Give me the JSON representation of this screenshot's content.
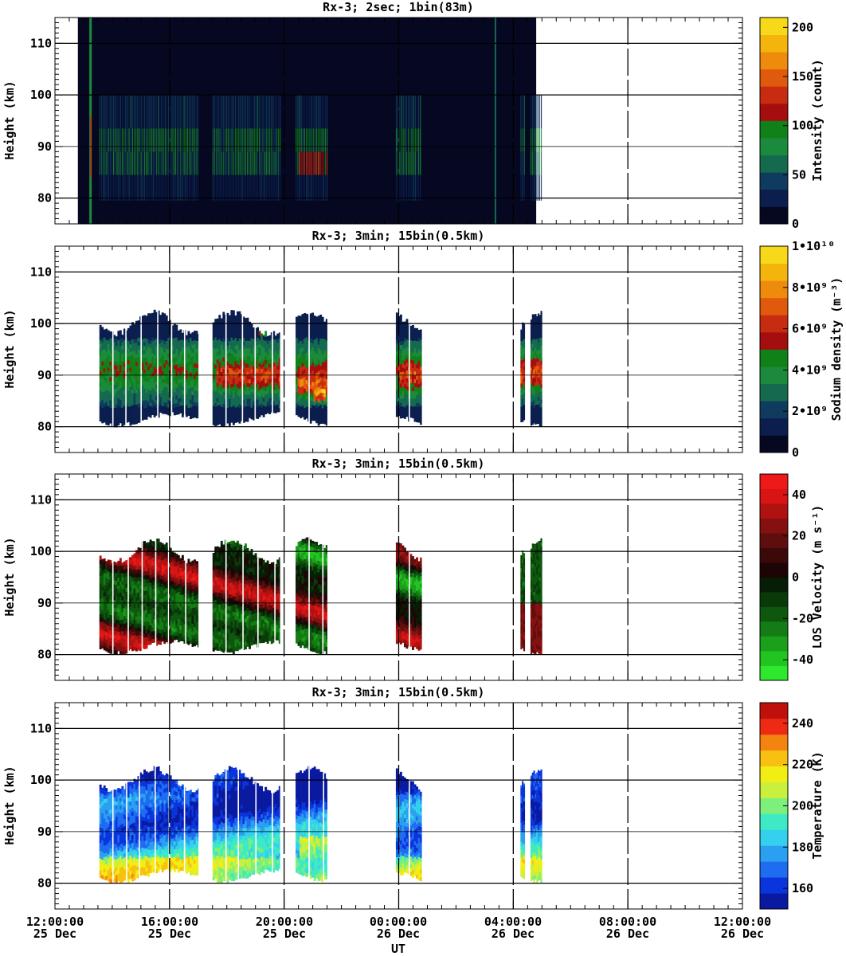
{
  "chart_data": [
    {
      "type": "heatmap",
      "title": "Rx-3;  2sec; 1bin(83m)",
      "ylabel": "Height (km)",
      "ylim": [
        75,
        115
      ],
      "y_ticks": [
        80,
        90,
        100,
        110
      ],
      "xlim": [
        0,
        24
      ],
      "x_ticks": [
        0,
        4,
        8,
        12,
        16,
        20,
        24
      ],
      "colorbar": {
        "label": "Intensity (count)",
        "ticks": [
          "0",
          "50",
          "100",
          "150",
          "200"
        ],
        "range": [
          0,
          210
        ],
        "colors": [
          "#060822",
          "#0b1e4e",
          "#0f3b5e",
          "#146a4e",
          "#1b8a3c",
          "#108018",
          "#a50e0e",
          "#c72c10",
          "#df5a0c",
          "#ee8b0c",
          "#f4b40c",
          "#f7d91a"
        ]
      },
      "observation_window_hours": [
        0.8,
        16.8
      ],
      "data_blocks_hours": [
        [
          1.55,
          5.0
        ],
        [
          5.5,
          7.85
        ],
        [
          8.4,
          9.5
        ],
        [
          11.9,
          12.8
        ],
        [
          16.25,
          16.4
        ],
        [
          16.6,
          17.0
        ]
      ]
    },
    {
      "type": "heatmap",
      "title": "Rx-3; 3min; 15bin(0.5km)",
      "ylabel": "Height (km)",
      "ylim": [
        75,
        115
      ],
      "y_ticks": [
        80,
        90,
        100,
        110
      ],
      "xlim": [
        0,
        24
      ],
      "x_ticks": [
        0,
        4,
        8,
        12,
        16,
        20,
        24
      ],
      "colorbar": {
        "label": "Sodium density (m⁻³)",
        "ticks": [
          "0",
          "2•10⁹",
          "4•10⁹",
          "6•10⁹",
          "8•10⁹",
          "1•10¹⁰"
        ],
        "range": [
          0,
          10000000000
        ],
        "colors": [
          "#060822",
          "#0b1e4e",
          "#0f3b5e",
          "#146a4e",
          "#1b8a3c",
          "#108018",
          "#a50e0e",
          "#c72c10",
          "#df5a0c",
          "#ee8b0c",
          "#f4b40c",
          "#f7d91a"
        ]
      },
      "data_blocks_hours": [
        [
          1.55,
          5.0
        ],
        [
          5.5,
          7.85
        ],
        [
          8.4,
          9.5
        ],
        [
          11.9,
          12.8
        ],
        [
          16.25,
          16.4
        ],
        [
          16.6,
          17.0
        ]
      ]
    },
    {
      "type": "heatmap",
      "title": "Rx-3; 3min; 15bin(0.5km)",
      "ylabel": "Height (km)",
      "ylim": [
        75,
        115
      ],
      "y_ticks": [
        80,
        90,
        100,
        110
      ],
      "xlim": [
        0,
        24
      ],
      "x_ticks": [
        0,
        4,
        8,
        12,
        16,
        20,
        24
      ],
      "colorbar": {
        "label": "LOS Velocity (m s⁻¹)",
        "ticks": [
          "-40",
          "-20",
          "0",
          "20",
          "40"
        ],
        "range": [
          -50,
          50
        ],
        "colors": [
          "#2ee82e",
          "#22c422",
          "#1aa01a",
          "#147c14",
          "#0e580e",
          "#0a3a0a",
          "#051e05",
          "#1e0505",
          "#3c0909",
          "#5e0e0e",
          "#861010",
          "#b01212",
          "#d81414",
          "#ee1a1a"
        ]
      },
      "data_blocks_hours": [
        [
          1.55,
          5.0
        ],
        [
          5.5,
          7.85
        ],
        [
          8.4,
          9.5
        ],
        [
          11.9,
          12.8
        ],
        [
          16.25,
          16.4
        ],
        [
          16.6,
          17.0
        ]
      ]
    },
    {
      "type": "heatmap",
      "title": "Rx-3; 3min; 15bin(0.5km)",
      "ylabel": "Height (km)",
      "ylim": [
        75,
        115
      ],
      "y_ticks": [
        80,
        90,
        100,
        110
      ],
      "xlim": [
        0,
        24
      ],
      "x_ticks": [
        0,
        4,
        8,
        12,
        16,
        20,
        24
      ],
      "xlabel": "UT",
      "colorbar": {
        "label": "Temperature (K)",
        "ticks": [
          "160",
          "180",
          "200",
          "220",
          "240"
        ],
        "range": [
          150,
          250
        ],
        "colors": [
          "#0a1aa0",
          "#0a34dc",
          "#1e6cf0",
          "#2ca0f0",
          "#34d0ee",
          "#3eeac4",
          "#7cf07a",
          "#c8f03c",
          "#f2ee14",
          "#f8c010",
          "#f48410",
          "#ee2a14",
          "#c0100c"
        ]
      },
      "data_blocks_hours": [
        [
          1.55,
          5.0
        ],
        [
          5.5,
          7.85
        ],
        [
          8.4,
          9.5
        ],
        [
          11.9,
          12.8
        ],
        [
          16.25,
          16.4
        ],
        [
          16.6,
          17.0
        ]
      ]
    }
  ],
  "x_tick_labels": [
    {
      "time": "12:00:00",
      "date": "25 Dec"
    },
    {
      "time": "16:00:00",
      "date": "25 Dec"
    },
    {
      "time": "20:00:00",
      "date": "25 Dec"
    },
    {
      "time": "00:00:00",
      "date": "26 Dec"
    },
    {
      "time": "04:00:00",
      "date": "26 Dec"
    },
    {
      "time": "08:00:00",
      "date": "26 Dec"
    },
    {
      "time": "12:00:00",
      "date": "26 Dec"
    }
  ],
  "x_axis_label": "UT"
}
